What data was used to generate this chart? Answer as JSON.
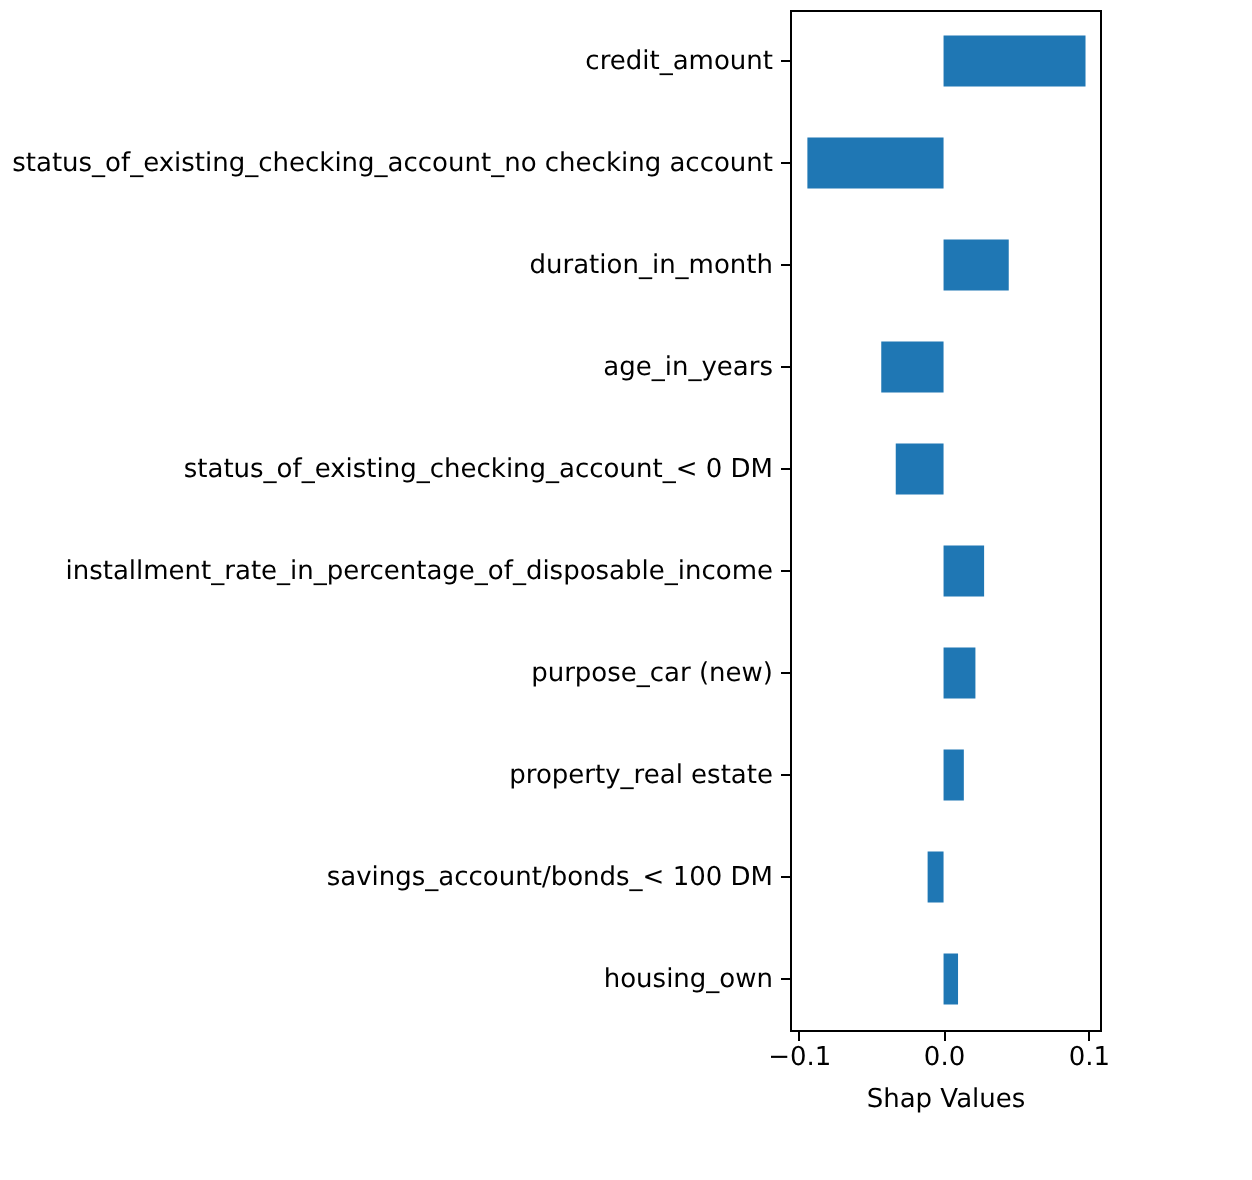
{
  "chart_data": {
    "type": "bar",
    "orientation": "horizontal",
    "xlabel": "Shap Values",
    "categories": [
      "credit_amount",
      "status_of_existing_checking_account_no checking account",
      "duration_in_month",
      "age_in_years",
      "status_of_existing_checking_account_< 0 DM",
      "installment_rate_in_percentage_of_disposable_income",
      "purpose_car (new)",
      "property_real estate",
      "savings_account/bonds_< 100 DM",
      "housing_own"
    ],
    "values": [
      0.098,
      -0.094,
      0.045,
      -0.043,
      -0.033,
      0.028,
      0.022,
      0.014,
      -0.011,
      0.01
    ],
    "color": "#1f77b4",
    "xlim": [
      -0.106,
      0.108
    ],
    "xticks": [
      {
        "value": -0.1,
        "label": "−0.1"
      },
      {
        "value": 0,
        "label": "0.0"
      },
      {
        "value": 0.1,
        "label": "0.1"
      }
    ],
    "grid": false
  }
}
